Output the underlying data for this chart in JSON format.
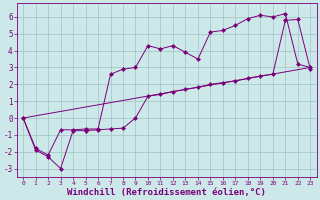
{
  "line1_x": [
    0,
    23
  ],
  "line1_y": [
    0.0,
    3.0
  ],
  "line2_x": [
    0,
    1,
    2,
    3,
    4,
    5,
    6,
    7,
    8,
    9,
    10,
    11,
    12,
    13,
    14,
    15,
    16,
    17,
    18,
    19,
    20,
    21,
    22,
    23
  ],
  "line2_y": [
    0.0,
    -1.8,
    -2.2,
    -0.7,
    -0.7,
    -0.65,
    -0.65,
    2.6,
    2.9,
    3.0,
    4.3,
    4.1,
    4.3,
    3.9,
    3.5,
    5.1,
    5.2,
    5.5,
    5.9,
    6.1,
    6.0,
    6.2,
    3.2,
    3.0
  ],
  "line3_x": [
    0,
    1,
    2,
    3,
    4,
    5,
    6,
    7,
    8,
    9,
    10,
    11,
    12,
    13,
    14,
    15,
    16,
    17,
    18,
    19,
    20,
    21,
    22,
    23
  ],
  "line3_y": [
    0.0,
    -1.9,
    -2.3,
    -3.0,
    -0.75,
    -0.75,
    -0.7,
    -0.65,
    -0.6,
    0.0,
    1.3,
    1.4,
    1.57,
    1.7,
    1.83,
    2.0,
    2.1,
    2.2,
    2.35,
    2.5,
    2.6,
    5.8,
    5.85,
    2.9
  ],
  "line_color": "#7b007b",
  "markersize": 2.5,
  "bg_color": "#cce8e8",
  "grid_color": "#a0c4c4",
  "xlabel": "Windchill (Refroidissement éolien,°C)",
  "ylim": [
    -3.5,
    6.8
  ],
  "xlim": [
    -0.5,
    23.5
  ],
  "yticks": [
    -3,
    -2,
    -1,
    0,
    1,
    2,
    3,
    4,
    5,
    6
  ],
  "xticks": [
    0,
    1,
    2,
    3,
    4,
    5,
    6,
    7,
    8,
    9,
    10,
    11,
    12,
    13,
    14,
    15,
    16,
    17,
    18,
    19,
    20,
    21,
    22,
    23
  ],
  "tick_color": "#7b007b",
  "xlabel_color": "#7b007b",
  "font_size": 5.5,
  "xlabel_font_size": 6.5
}
